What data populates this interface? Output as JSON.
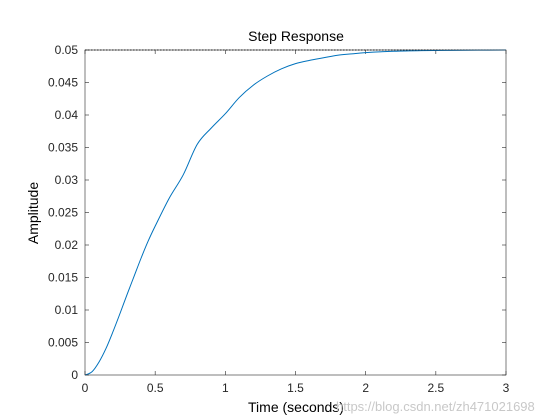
{
  "chart_data": {
    "type": "line",
    "title": "Step Response",
    "xlabel": "Time (seconds)",
    "ylabel": "Amplitude",
    "xlim": [
      0,
      3
    ],
    "ylim": [
      0,
      0.05
    ],
    "xticks": [
      0,
      0.5,
      1,
      1.5,
      2,
      2.5,
      3
    ],
    "xtick_labels": [
      "0",
      "0.5",
      "1",
      "1.5",
      "2",
      "2.5",
      "3"
    ],
    "yticks": [
      0,
      0.005,
      0.01,
      0.015,
      0.02,
      0.025,
      0.03,
      0.035,
      0.04,
      0.045,
      0.05
    ],
    "ytick_labels": [
      "0",
      "0.005",
      "0.01",
      "0.015",
      "0.02",
      "0.025",
      "0.03",
      "0.035",
      "0.04",
      "0.045",
      "0.05"
    ],
    "grid": false,
    "steady_state": {
      "value": 0.05,
      "style": "dotted",
      "color": "#000000"
    },
    "series": [
      {
        "color": "#0072BD",
        "x": [
          0,
          0.05,
          0.1,
          0.15,
          0.2,
          0.25,
          0.3,
          0.35,
          0.4,
          0.45,
          0.5,
          0.6,
          0.7,
          0.8,
          0.9,
          1.0,
          1.1,
          1.2,
          1.3,
          1.4,
          1.5,
          1.6,
          1.7,
          1.8,
          1.9,
          2.0,
          2.2,
          2.4,
          2.6,
          2.8,
          3.0
        ],
        "y": [
          0,
          0.0005,
          0.002,
          0.0041,
          0.0067,
          0.0095,
          0.0124,
          0.0152,
          0.018,
          0.0206,
          0.0229,
          0.0272,
          0.0308,
          0.0355,
          0.038,
          0.0402,
          0.0427,
          0.0446,
          0.046,
          0.0471,
          0.0479,
          0.0484,
          0.0488,
          0.0492,
          0.0494,
          0.0496,
          0.0498,
          0.0499,
          0.04995,
          0.04998,
          0.05
        ]
      }
    ]
  },
  "watermark": "https://blog.csdn.net/zh471021698"
}
